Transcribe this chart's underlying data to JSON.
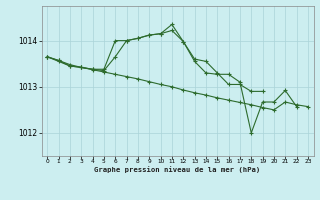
{
  "title": "Graphe pression niveau de la mer (hPa)",
  "bg_color": "#cceef0",
  "grid_color": "#aad4d8",
  "line_color": "#2d6b2d",
  "marker_color": "#2d6b2d",
  "xlim": [
    -0.5,
    23.5
  ],
  "ylim": [
    1011.5,
    1014.75
  ],
  "yticks": [
    1012,
    1013,
    1014
  ],
  "xticks": [
    0,
    1,
    2,
    3,
    4,
    5,
    6,
    7,
    8,
    9,
    10,
    11,
    12,
    13,
    14,
    15,
    16,
    17,
    18,
    19,
    20,
    21,
    22,
    23
  ],
  "series": [
    {
      "x": [
        0,
        1,
        2,
        3,
        4,
        5,
        6,
        7,
        8,
        9,
        10,
        11,
        12,
        13,
        14,
        15,
        16,
        17,
        18,
        19,
        20,
        21,
        22,
        23
      ],
      "y": [
        1013.65,
        1013.57,
        1013.48,
        1013.42,
        1013.37,
        1013.32,
        1013.27,
        1013.22,
        1013.17,
        1013.11,
        1013.05,
        1013.0,
        1012.93,
        1012.87,
        1012.82,
        1012.76,
        1012.71,
        1012.66,
        1012.61,
        1012.55,
        1012.5,
        1012.67,
        1012.61,
        1012.57
      ]
    },
    {
      "x": [
        0,
        1,
        2,
        3,
        4,
        5,
        6,
        7,
        8,
        9,
        10,
        11,
        12,
        13,
        14,
        15,
        16,
        17,
        18,
        19,
        20,
        21,
        22
      ],
      "y": [
        1013.65,
        1013.57,
        1013.45,
        1013.42,
        1013.38,
        1013.38,
        1014.0,
        1014.0,
        1014.05,
        1014.12,
        1014.15,
        1014.22,
        1013.98,
        1013.55,
        1013.3,
        1013.27,
        1013.27,
        1013.1,
        1012.0,
        1012.67,
        1012.67,
        1012.92,
        1012.57
      ]
    },
    {
      "x": [
        0,
        1,
        2,
        3,
        4,
        5,
        6,
        7,
        8,
        9,
        10,
        11,
        12,
        13,
        14,
        15,
        16,
        17,
        18,
        19
      ],
      "y": [
        1013.65,
        1013.55,
        1013.45,
        1013.42,
        1013.38,
        1013.35,
        1013.65,
        1014.0,
        1014.05,
        1014.12,
        1014.15,
        1014.35,
        1013.98,
        1013.6,
        1013.55,
        1013.3,
        1013.05,
        1013.05,
        1012.9,
        1012.9
      ]
    }
  ]
}
